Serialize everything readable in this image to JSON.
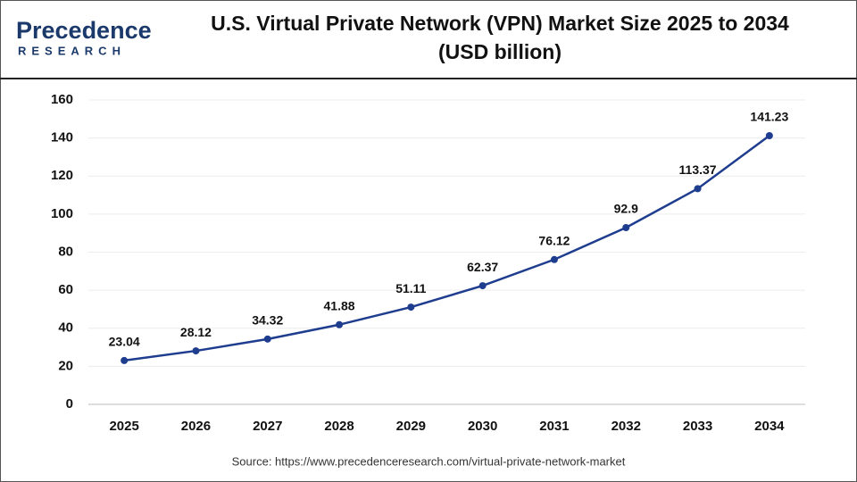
{
  "logo": {
    "name": "Precedence",
    "tagline": "RESEARCH"
  },
  "chart_data": {
    "type": "line",
    "title": [
      "U.S. Virtual Private Network (VPN) Market Size 2025 to 2034",
      "(USD billion)"
    ],
    "categories": [
      "2025",
      "2026",
      "2027",
      "2028",
      "2029",
      "2030",
      "2031",
      "2032",
      "2033",
      "2034"
    ],
    "values": [
      23.04,
      28.12,
      34.32,
      41.88,
      51.11,
      62.37,
      76.12,
      92.9,
      113.37,
      141.23
    ],
    "color": "#1f3d8f",
    "ylim": [
      0,
      160
    ],
    "yticks": [
      0,
      20,
      40,
      60,
      80,
      100,
      120,
      140,
      160
    ],
    "grid": true,
    "source": "Source: https://www.precedenceresearch.com/virtual-private-network-market"
  }
}
